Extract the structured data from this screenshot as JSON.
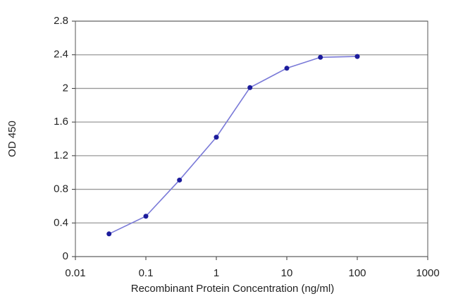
{
  "chart_data": {
    "type": "line",
    "x_label": "Recombinant Protein Concentration (ng/ml)",
    "y_label": "OD 450",
    "x": [
      0.03,
      0.1,
      0.3,
      1,
      3,
      10,
      30,
      100
    ],
    "values": [
      0.27,
      0.48,
      0.91,
      1.42,
      2.01,
      2.24,
      2.37,
      2.38
    ],
    "color": "#1c1c9c",
    "line_color": "#7a7ad8",
    "x_scale": "log",
    "xlim": [
      0.01,
      1000
    ],
    "xticks": [
      0.01,
      0.1,
      1,
      10,
      100,
      1000
    ],
    "ylim": [
      0,
      2.8
    ],
    "yticks": [
      0,
      0.4,
      0.8,
      1.2,
      1.6,
      2,
      2.4,
      2.8
    ],
    "grid": true
  }
}
